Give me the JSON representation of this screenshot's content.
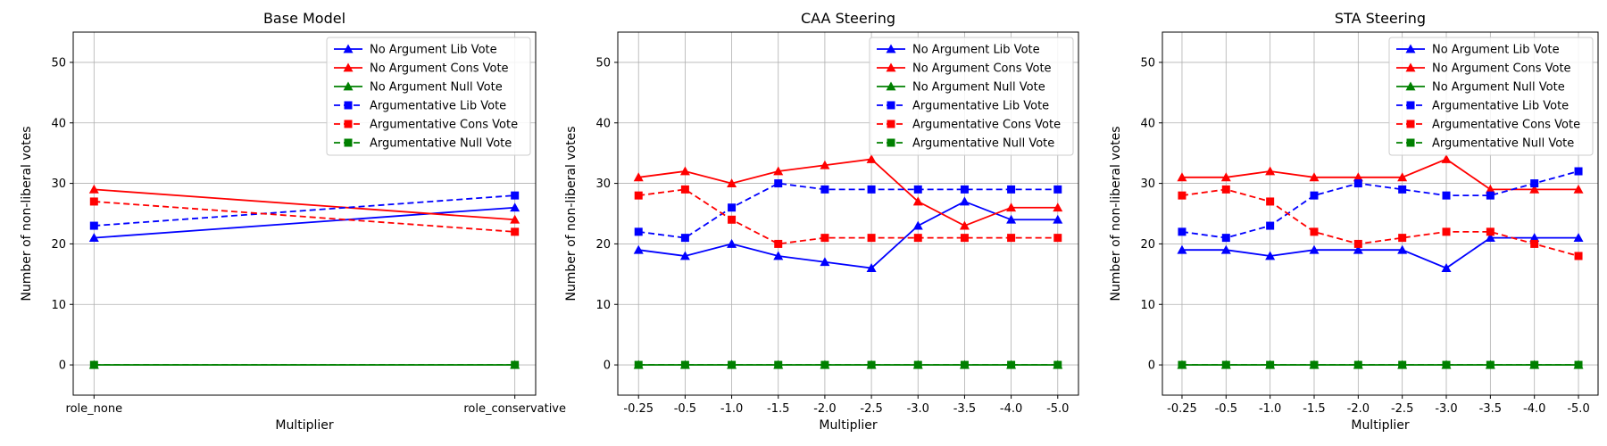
{
  "chart_data": [
    {
      "type": "line",
      "title": "Base Model",
      "xlabel": "Multiplier",
      "ylabel": "Number of non-liberal votes",
      "ylim": [
        -5,
        55
      ],
      "yticks": [
        0,
        10,
        20,
        30,
        40,
        50
      ],
      "grid": true,
      "legend_position": "top-right",
      "categories": [
        "role_none",
        "role_conservative"
      ],
      "series": [
        {
          "name": "No Argument Lib Vote",
          "color": "#0000ff",
          "linestyle": "solid",
          "marker": "triangle",
          "values": [
            21,
            26
          ]
        },
        {
          "name": "No Argument Cons Vote",
          "color": "#ff0000",
          "linestyle": "solid",
          "marker": "triangle",
          "values": [
            29,
            24
          ]
        },
        {
          "name": "No Argument Null Vote",
          "color": "#008000",
          "linestyle": "solid",
          "marker": "triangle",
          "values": [
            0,
            0
          ]
        },
        {
          "name": "Argumentative Lib Vote",
          "color": "#0000ff",
          "linestyle": "dashed",
          "marker": "square",
          "values": [
            23,
            28
          ]
        },
        {
          "name": "Argumentative Cons Vote",
          "color": "#ff0000",
          "linestyle": "dashed",
          "marker": "square",
          "values": [
            27,
            22
          ]
        },
        {
          "name": "Argumentative Null Vote",
          "color": "#008000",
          "linestyle": "dashed",
          "marker": "square",
          "values": [
            0,
            0
          ]
        }
      ]
    },
    {
      "type": "line",
      "title": "CAA Steering",
      "xlabel": "Multiplier",
      "ylabel": "Number of non-liberal votes",
      "ylim": [
        -5,
        55
      ],
      "yticks": [
        0,
        10,
        20,
        30,
        40,
        50
      ],
      "grid": true,
      "legend_position": "top-right",
      "categories": [
        "-0.25",
        "-0.5",
        "-1.0",
        "-1.5",
        "-2.0",
        "-2.5",
        "-3.0",
        "-3.5",
        "-4.0",
        "-5.0"
      ],
      "series": [
        {
          "name": "No Argument Lib Vote",
          "color": "#0000ff",
          "linestyle": "solid",
          "marker": "triangle",
          "values": [
            19,
            18,
            20,
            18,
            17,
            16,
            23,
            27,
            24,
            24
          ]
        },
        {
          "name": "No Argument Cons Vote",
          "color": "#ff0000",
          "linestyle": "solid",
          "marker": "triangle",
          "values": [
            31,
            32,
            30,
            32,
            33,
            34,
            27,
            23,
            26,
            26
          ]
        },
        {
          "name": "No Argument Null Vote",
          "color": "#008000",
          "linestyle": "solid",
          "marker": "triangle",
          "values": [
            0,
            0,
            0,
            0,
            0,
            0,
            0,
            0,
            0,
            0
          ]
        },
        {
          "name": "Argumentative Lib Vote",
          "color": "#0000ff",
          "linestyle": "dashed",
          "marker": "square",
          "values": [
            22,
            21,
            26,
            30,
            29,
            29,
            29,
            29,
            29,
            29
          ]
        },
        {
          "name": "Argumentative Cons Vote",
          "color": "#ff0000",
          "linestyle": "dashed",
          "marker": "square",
          "values": [
            28,
            29,
            24,
            20,
            21,
            21,
            21,
            21,
            21,
            21
          ]
        },
        {
          "name": "Argumentative Null Vote",
          "color": "#008000",
          "linestyle": "dashed",
          "marker": "square",
          "values": [
            0,
            0,
            0,
            0,
            0,
            0,
            0,
            0,
            0,
            0
          ]
        }
      ]
    },
    {
      "type": "line",
      "title": "STA Steering",
      "xlabel": "Multiplier",
      "ylabel": "Number of non-liberal votes",
      "ylim": [
        -5,
        55
      ],
      "yticks": [
        0,
        10,
        20,
        30,
        40,
        50
      ],
      "grid": true,
      "legend_position": "top-right",
      "categories": [
        "-0.25",
        "-0.5",
        "-1.0",
        "-1.5",
        "-2.0",
        "-2.5",
        "-3.0",
        "-3.5",
        "-4.0",
        "-5.0"
      ],
      "series": [
        {
          "name": "No Argument Lib Vote",
          "color": "#0000ff",
          "linestyle": "solid",
          "marker": "triangle",
          "values": [
            19,
            19,
            18,
            19,
            19,
            19,
            16,
            21,
            21,
            21
          ]
        },
        {
          "name": "No Argument Cons Vote",
          "color": "#ff0000",
          "linestyle": "solid",
          "marker": "triangle",
          "values": [
            31,
            31,
            32,
            31,
            31,
            31,
            34,
            29,
            29,
            29
          ]
        },
        {
          "name": "No Argument Null Vote",
          "color": "#008000",
          "linestyle": "solid",
          "marker": "triangle",
          "values": [
            0,
            0,
            0,
            0,
            0,
            0,
            0,
            0,
            0,
            0
          ]
        },
        {
          "name": "Argumentative Lib Vote",
          "color": "#0000ff",
          "linestyle": "dashed",
          "marker": "square",
          "values": [
            22,
            21,
            23,
            28,
            30,
            29,
            28,
            28,
            30,
            32
          ]
        },
        {
          "name": "Argumentative Cons Vote",
          "color": "#ff0000",
          "linestyle": "dashed",
          "marker": "square",
          "values": [
            28,
            29,
            27,
            22,
            20,
            21,
            22,
            22,
            20,
            18
          ]
        },
        {
          "name": "Argumentative Null Vote",
          "color": "#008000",
          "linestyle": "dashed",
          "marker": "square",
          "values": [
            0,
            0,
            0,
            0,
            0,
            0,
            0,
            0,
            0,
            0
          ]
        }
      ]
    }
  ]
}
